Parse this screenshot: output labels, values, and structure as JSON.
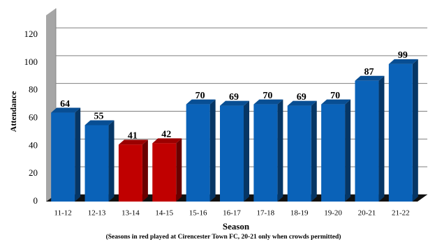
{
  "chart_data": {
    "type": "bar3d",
    "categories": [
      "11-12",
      "12-13",
      "13-14",
      "14-15",
      "15-16",
      "16-17",
      "17-18",
      "18-19",
      "19-20",
      "20-21",
      "21-22"
    ],
    "values": [
      64,
      55,
      41,
      42,
      70,
      69,
      70,
      69,
      70,
      87,
      99
    ],
    "colors": [
      "#0a62b8",
      "#0a62b8",
      "#c00000",
      "#c00000",
      "#0a62b8",
      "#0a62b8",
      "#0a62b8",
      "#0a62b8",
      "#0a62b8",
      "#0a62b8",
      "#0a62b8"
    ],
    "ylim": [
      0,
      120
    ],
    "yticks": [
      0,
      20,
      40,
      60,
      80,
      100,
      120
    ],
    "grid": true,
    "y_label": "Attendance",
    "x_label": "Season",
    "note": "(Seasons in red played at Cirencester Town FC, 20-21 only when crowds permitted)"
  }
}
